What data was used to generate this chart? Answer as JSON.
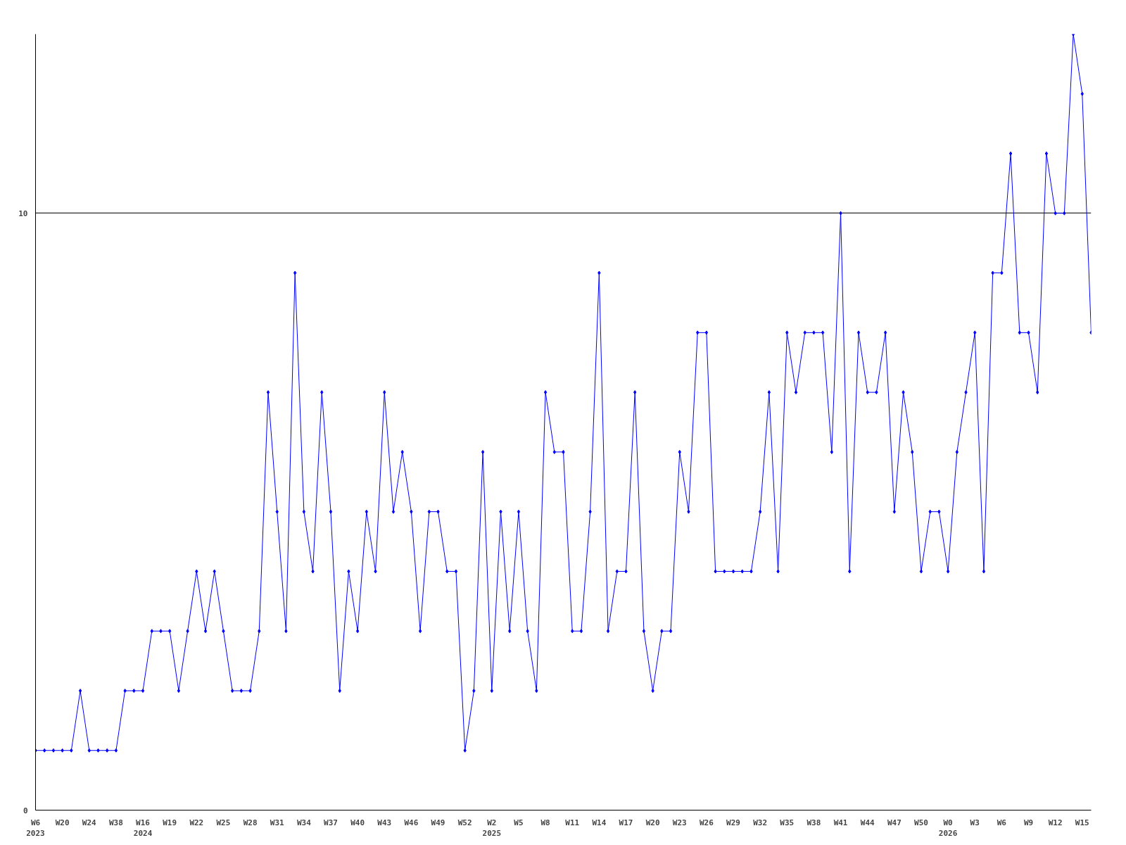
{
  "chart_data": {
    "type": "line",
    "categories": [
      "W6\n2023",
      null,
      null,
      "W20",
      null,
      null,
      "W24",
      null,
      null,
      "W38",
      null,
      null,
      "W16\n2024",
      null,
      null,
      "W19",
      null,
      null,
      "W22",
      null,
      null,
      "W25",
      null,
      null,
      "W28",
      null,
      null,
      "W31",
      null,
      null,
      "W34",
      null,
      null,
      "W37",
      null,
      null,
      "W40",
      null,
      null,
      "W43",
      null,
      null,
      "W46",
      null,
      null,
      "W49",
      null,
      null,
      "W52",
      null,
      null,
      "W2\n2025",
      null,
      null,
      "W5",
      null,
      null,
      "W8",
      null,
      null,
      "W11",
      null,
      null,
      "W14",
      null,
      null,
      "W17",
      null,
      null,
      "W20",
      null,
      null,
      "W23",
      null,
      null,
      "W26",
      null,
      null,
      "W29",
      null,
      null,
      "W32",
      null,
      null,
      "W35",
      null,
      null,
      "W38",
      null,
      null,
      "W41",
      null,
      null,
      "W44",
      null,
      null,
      "W47",
      null,
      null,
      "W50",
      null,
      null,
      "W0\n2026",
      null,
      null,
      "W3",
      null,
      null,
      "W6",
      null,
      null,
      "W9",
      null,
      null,
      "W12",
      null,
      null,
      "W15",
      null
    ],
    "series": [
      {
        "color": "#0000ff",
        "values": [
          1,
          1,
          1,
          1,
          1,
          2,
          1,
          1,
          1,
          1,
          2,
          2,
          2,
          3,
          3,
          3,
          2,
          3,
          4,
          3,
          4,
          3,
          2,
          2,
          2,
          3,
          7,
          5,
          3,
          9,
          5,
          4,
          7,
          5,
          2,
          4,
          3,
          5,
          4,
          7,
          5,
          6,
          5,
          3,
          5,
          5,
          4,
          4,
          1,
          2,
          6,
          2,
          5,
          3,
          5,
          3,
          2,
          7,
          6,
          6,
          3,
          3,
          5,
          9,
          3,
          4,
          4,
          7,
          3,
          2,
          3,
          3,
          6,
          5,
          8,
          8,
          4,
          4,
          4,
          4,
          4,
          5,
          7,
          4,
          8,
          7,
          8,
          8,
          8,
          6,
          10,
          4,
          8,
          7,
          7,
          8,
          5,
          7,
          6,
          4,
          5,
          5,
          4,
          6,
          7,
          8,
          4,
          9,
          9,
          11,
          8,
          8,
          7,
          11,
          10,
          10,
          13,
          12,
          8
        ]
      }
    ],
    "ylim": [
      0,
      13
    ],
    "yticks": [
      0,
      10
    ],
    "grid": "y",
    "marker": "diamond",
    "line_style": "solid"
  }
}
